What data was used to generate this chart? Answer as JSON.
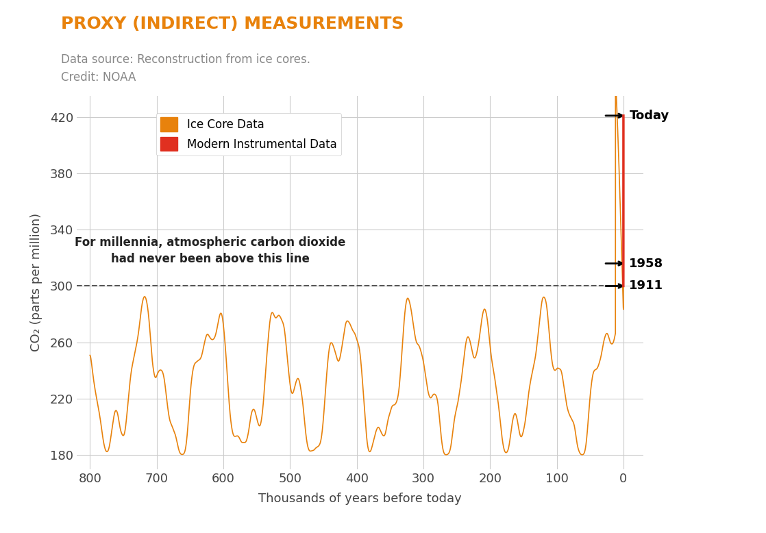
{
  "title": "PROXY (INDIRECT) MEASUREMENTS",
  "title_color": "#E8820C",
  "datasource_line1": "Data source: Reconstruction from ice cores.",
  "datasource_line2": "Credit: NOAA",
  "datasource_color": "#888888",
  "xlabel": "Thousands of years before today",
  "ylabel": "CO₂ (parts per million)",
  "xlim": [
    820,
    -30
  ],
  "ylim": [
    170,
    435
  ],
  "yticks": [
    180,
    220,
    260,
    300,
    340,
    380,
    420
  ],
  "xticks": [
    800,
    700,
    600,
    500,
    400,
    300,
    200,
    100,
    0
  ],
  "dashed_line_y": 300,
  "dashed_line_color": "#555555",
  "annotation_text": "For millennia, atmospheric carbon dioxide\nhad never been above this line",
  "ice_core_color": "#E8820C",
  "modern_color": "#E03020",
  "legend_ice_label": "Ice Core Data",
  "legend_modern_label": "Modern Instrumental Data",
  "today_label": "Today",
  "label_1958": "1958",
  "label_1911": "1911",
  "background_color": "#ffffff",
  "grid_color": "#cccccc",
  "today_co2": 421,
  "co2_1958": 316,
  "co2_1911": 300
}
